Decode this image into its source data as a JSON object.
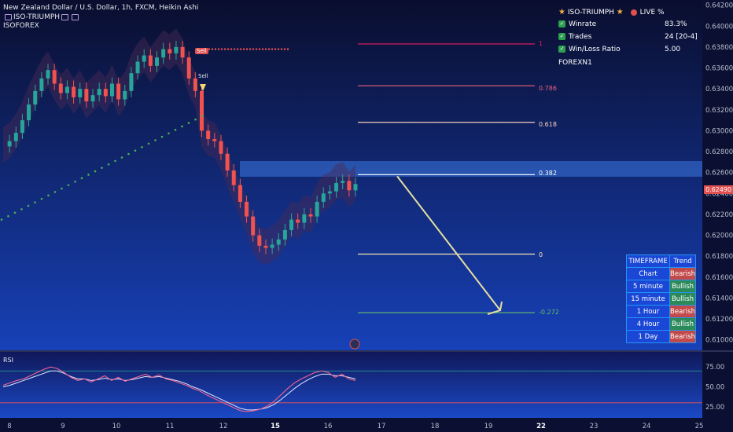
{
  "header": {
    "symbol_line": "New Zealand Dollar / U.S. Dollar, 1h, FXCM, Heikin Ashi",
    "indicator1": "ISO-TRIUMPH",
    "indicator2": "ISOFOREX",
    "rsi_label": "RSI"
  },
  "stats_panel": {
    "title": "ISO-TRIUMPH",
    "live": "LIVE %",
    "rows": [
      {
        "label": "Winrate",
        "value": "83.3%"
      },
      {
        "label": "Trades",
        "value": "24 [20-4]"
      },
      {
        "label": "Win/Loss Ratio",
        "value": "5.00"
      }
    ],
    "footer": "FOREXN1"
  },
  "timeframe_table": {
    "headers": [
      "TIMEFRAME",
      "Trend"
    ],
    "rows": [
      {
        "tf": "Chart",
        "trend": "Bearish"
      },
      {
        "tf": "5 minute",
        "trend": "Bullish"
      },
      {
        "tf": "15 minute",
        "trend": "Bullish"
      },
      {
        "tf": "1 Hour",
        "trend": "Bearish"
      },
      {
        "tf": "4 Hour",
        "trend": "Bullish"
      },
      {
        "tf": "1 Day",
        "trend": "Bearish"
      }
    ]
  },
  "signals": {
    "sell1": "Sell",
    "sell2": "Sell"
  },
  "current_price": "0.62490",
  "colors": {
    "background": "#0b1033",
    "bull_candle": "#26a69a",
    "bear_candle": "#ef5350",
    "accent_red": "#e05050",
    "zone_blue": "#2a62c9",
    "arrow": "#e6e0a0"
  },
  "chart_data": {
    "type": "line",
    "price_axis": {
      "ylim": [
        0.609,
        0.6425
      ],
      "ticks": [
        "0.64200",
        "0.64000",
        "0.63800",
        "0.63600",
        "0.63400",
        "0.63200",
        "0.63000",
        "0.62800",
        "0.62600",
        "0.62400",
        "0.62200",
        "0.62000",
        "0.61800",
        "0.61600",
        "0.61400",
        "0.61200",
        "0.61000"
      ],
      "tick_values": [
        0.642,
        0.64,
        0.638,
        0.636,
        0.634,
        0.632,
        0.63,
        0.628,
        0.626,
        0.624,
        0.622,
        0.62,
        0.618,
        0.616,
        0.614,
        0.612,
        0.61
      ]
    },
    "x_axis": {
      "ticks": [
        "8",
        "9",
        "10",
        "11",
        "12",
        "15",
        "16",
        "17",
        "18",
        "19",
        "22",
        "23",
        "24",
        "25"
      ],
      "bold_ticks": [
        "15",
        "22"
      ]
    },
    "fib_levels": [
      {
        "label": "1",
        "value": 0.6383,
        "color": "#e91e63"
      },
      {
        "label": "0.786",
        "value": 0.6343,
        "color": "#ef5f7a"
      },
      {
        "label": "0.618",
        "value": 0.6308,
        "color": "#f5d0c0"
      },
      {
        "label": "0.382",
        "value": 0.6258,
        "color": "#ffffff"
      },
      {
        "label": "0",
        "value": 0.6182,
        "color": "#f2e6b0"
      },
      {
        "label": "-0.272",
        "value": 0.6126,
        "color": "#66bb6a"
      }
    ],
    "resistance_zone": [
      0.6256,
      0.6271
    ],
    "projection_arrow": {
      "from": 0.6258,
      "to": 0.6126
    },
    "price_series": [
      0.6285,
      0.629,
      0.6298,
      0.631,
      0.6325,
      0.6338,
      0.635,
      0.6358,
      0.6345,
      0.6336,
      0.6342,
      0.6332,
      0.634,
      0.6328,
      0.6334,
      0.634,
      0.6333,
      0.6345,
      0.633,
      0.6338,
      0.6355,
      0.6366,
      0.6372,
      0.6362,
      0.637,
      0.6378,
      0.6374,
      0.638,
      0.637,
      0.635,
      0.6338,
      0.63,
      0.6292,
      0.629,
      0.6278,
      0.6262,
      0.6248,
      0.6232,
      0.6218,
      0.62,
      0.619,
      0.6188,
      0.6191,
      0.6196,
      0.6205,
      0.6215,
      0.6212,
      0.622,
      0.6218,
      0.6232,
      0.624,
      0.6242,
      0.625,
      0.6252,
      0.6243,
      0.6249
    ],
    "rsi": {
      "ylim": [
        15,
        90
      ],
      "ticks": [
        75.0,
        50.0,
        25.0
      ],
      "upper": 70,
      "lower": 30,
      "values": [
        52,
        55,
        58,
        60,
        64,
        68,
        72,
        75,
        73,
        68,
        62,
        58,
        60,
        56,
        60,
        64,
        58,
        62,
        57,
        60,
        63,
        66,
        62,
        65,
        60,
        58,
        55,
        52,
        48,
        45,
        40,
        36,
        32,
        28,
        24,
        20,
        19,
        20,
        22,
        26,
        32,
        40,
        48,
        55,
        60,
        64,
        68,
        70,
        68,
        62,
        66,
        60,
        58
      ],
      "signal": [
        50,
        52,
        55,
        58,
        61,
        64,
        67,
        70,
        70,
        67,
        63,
        60,
        60,
        58,
        59,
        61,
        59,
        60,
        58,
        59,
        61,
        63,
        62,
        63,
        61,
        59,
        57,
        54,
        50,
        47,
        43,
        39,
        35,
        31,
        27,
        23,
        21,
        21,
        22,
        24,
        28,
        34,
        41,
        48,
        54,
        59,
        63,
        66,
        66,
        64,
        64,
        62,
        60
      ]
    }
  }
}
